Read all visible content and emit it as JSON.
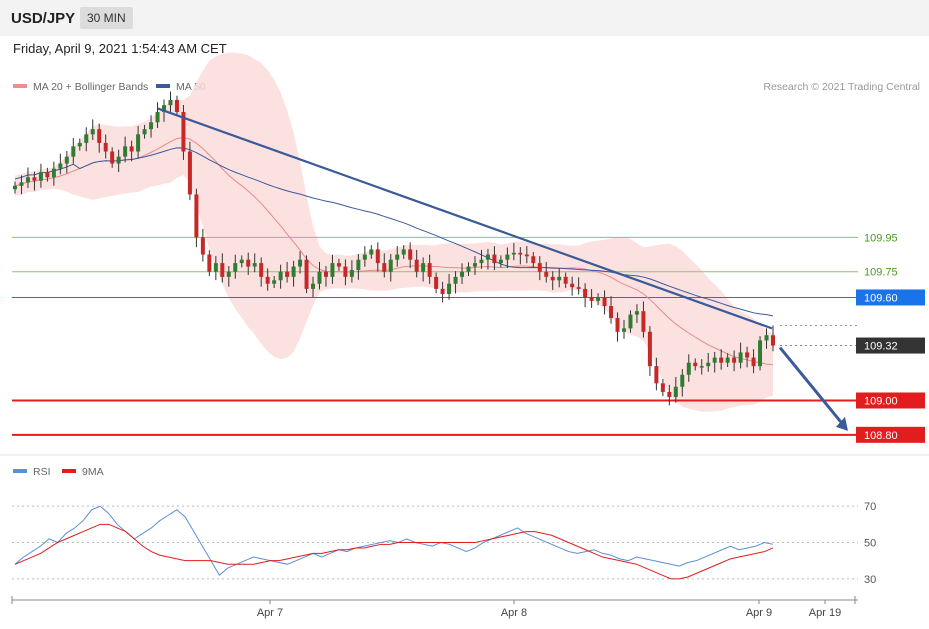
{
  "header": {
    "symbol": "USD/JPY",
    "timeframe": "30 MIN",
    "datetime": "Friday, April 9, 2021 1:54:43 AM CET"
  },
  "colors": {
    "candle_up": "#2e7d32",
    "candle_down": "#c62828",
    "bollinger_fill": "#fbdcdc",
    "ma20": "#e88a8a",
    "ma50": "#3a5a9a",
    "resistance_green": "#8dc26a",
    "current_price_line": "#1a73e8",
    "support_red": "#e21d1d",
    "trendline": "#3a5a9a",
    "rsi": "#5b8fd6",
    "rsi_ma": "#e21d1d"
  },
  "chart_data": [
    {
      "type": "candlestick",
      "legend": [
        {
          "name": "MA 20 + Bollinger Bands",
          "color": "#f08c8c"
        },
        {
          "name": "MA 50",
          "color": "#3a5a9a"
        }
      ],
      "attribution": "Research © 2021 Trading Central",
      "ylim": [
        108.7,
        110.75
      ],
      "x_ticks": [
        "Apr 7",
        "Apr 8",
        "Apr 9",
        "Apr 19"
      ],
      "levels": [
        {
          "label": "109.95",
          "value": 109.95,
          "kind": "resistance"
        },
        {
          "label": "109.75",
          "value": 109.75,
          "kind": "resistance"
        },
        {
          "label": "109.60",
          "value": 109.6,
          "kind": "last"
        },
        {
          "label": "109.32",
          "value": 109.32,
          "kind": "current"
        },
        {
          "label": "109.00",
          "value": 109.0,
          "kind": "support"
        },
        {
          "label": "108.80",
          "value": 108.8,
          "kind": "support"
        }
      ],
      "close": [
        110.25,
        110.27,
        110.3,
        110.28,
        110.33,
        110.3,
        110.35,
        110.38,
        110.42,
        110.48,
        110.5,
        110.55,
        110.58,
        110.5,
        110.45,
        110.38,
        110.42,
        110.48,
        110.45,
        110.55,
        110.58,
        110.62,
        110.68,
        110.72,
        110.75,
        110.68,
        110.45,
        110.2,
        109.95,
        109.85,
        109.75,
        109.8,
        109.72,
        109.75,
        109.8,
        109.82,
        109.78,
        109.8,
        109.72,
        109.68,
        109.7,
        109.75,
        109.72,
        109.78,
        109.82,
        109.65,
        109.68,
        109.75,
        109.72,
        109.8,
        109.78,
        109.72,
        109.76,
        109.82,
        109.85,
        109.88,
        109.8,
        109.75,
        109.82,
        109.85,
        109.88,
        109.82,
        109.75,
        109.8,
        109.72,
        109.65,
        109.62,
        109.68,
        109.72,
        109.75,
        109.78,
        109.8,
        109.82,
        109.85,
        109.8,
        109.82,
        109.85,
        109.86,
        109.85,
        109.84,
        109.8,
        109.75,
        109.72,
        109.7,
        109.72,
        109.68,
        109.66,
        109.65,
        109.6,
        109.58,
        109.6,
        109.55,
        109.48,
        109.4,
        109.42,
        109.5,
        109.52,
        109.4,
        109.2,
        109.1,
        109.05,
        109.02,
        109.08,
        109.15,
        109.22,
        109.2,
        109.2,
        109.22,
        109.25,
        109.22,
        109.25,
        109.22,
        109.28,
        109.25,
        109.2,
        109.35,
        109.38,
        109.32
      ],
      "bollinger": {
        "upper_max": 110.7,
        "lower_min": 109.05
      },
      "trendline": {
        "from": 110.7,
        "to": 109.42
      },
      "forecast_arrow": {
        "from": 109.32,
        "to": 108.8
      }
    },
    {
      "type": "line",
      "legend": [
        {
          "name": "RSI",
          "color": "#5b8fd6"
        },
        {
          "name": "9MA",
          "color": "#e21d1d"
        }
      ],
      "ylim": [
        20,
        80
      ],
      "y_ticks": [
        "70",
        "50",
        "30"
      ],
      "series": [
        {
          "name": "RSI",
          "values": [
            38,
            42,
            45,
            48,
            52,
            50,
            55,
            58,
            62,
            68,
            70,
            66,
            60,
            56,
            52,
            55,
            58,
            62,
            65,
            68,
            64,
            56,
            48,
            40,
            32,
            36,
            38,
            40,
            42,
            41,
            40,
            39,
            38,
            40,
            42,
            44,
            42,
            44,
            46,
            45,
            47,
            48,
            49,
            50,
            51,
            50,
            52,
            50,
            49,
            48,
            50,
            49,
            47,
            45,
            47,
            50,
            52,
            54,
            56,
            58,
            55,
            53,
            51,
            49,
            47,
            45,
            44,
            45,
            46,
            44,
            43,
            41,
            40,
            42,
            41,
            40,
            39,
            38,
            37,
            39,
            40,
            42,
            44,
            46,
            48,
            46,
            47,
            48,
            50,
            49
          ]
        },
        {
          "name": "9MA",
          "values": [
            38,
            40,
            42,
            44,
            47,
            50,
            52,
            54,
            56,
            58,
            60,
            60,
            58,
            56,
            52,
            48,
            45,
            43,
            42,
            41,
            40,
            40,
            40,
            40,
            39,
            38,
            38,
            38,
            38,
            39,
            40,
            40,
            41,
            42,
            43,
            44,
            44,
            45,
            46,
            46,
            47,
            47,
            48,
            49,
            49,
            50,
            50,
            50,
            50,
            50,
            50,
            50,
            50,
            50,
            50,
            51,
            52,
            53,
            54,
            55,
            56,
            56,
            55,
            54,
            52,
            50,
            48,
            46,
            44,
            42,
            41,
            40,
            39,
            38,
            36,
            34,
            32,
            30,
            30,
            31,
            33,
            35,
            37,
            39,
            41,
            42,
            43,
            44,
            45,
            47
          ]
        }
      ]
    }
  ]
}
